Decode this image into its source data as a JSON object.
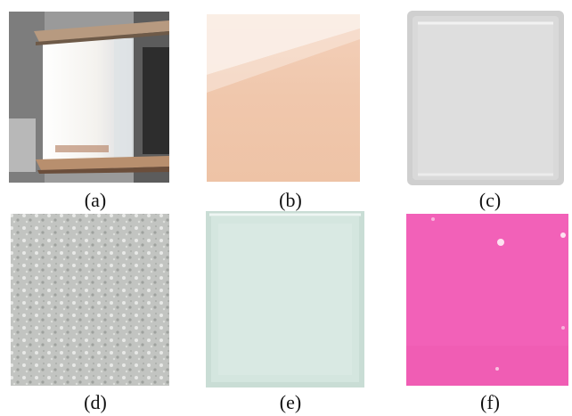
{
  "figure": {
    "panels": [
      {
        "label": "(a)",
        "sample_color": "#f4f2ee",
        "background_color": "#9a9a9a"
      },
      {
        "label": "(b)",
        "sample_color": "#f0c7ac"
      },
      {
        "label": "(c)",
        "sample_color": "#d9d9d9"
      },
      {
        "label": "(d)",
        "sample_color": "#c2c4c1"
      },
      {
        "label": "(e)",
        "sample_color": "#d4e6df"
      },
      {
        "label": "(f)",
        "sample_color": "#f261b8"
      }
    ]
  }
}
